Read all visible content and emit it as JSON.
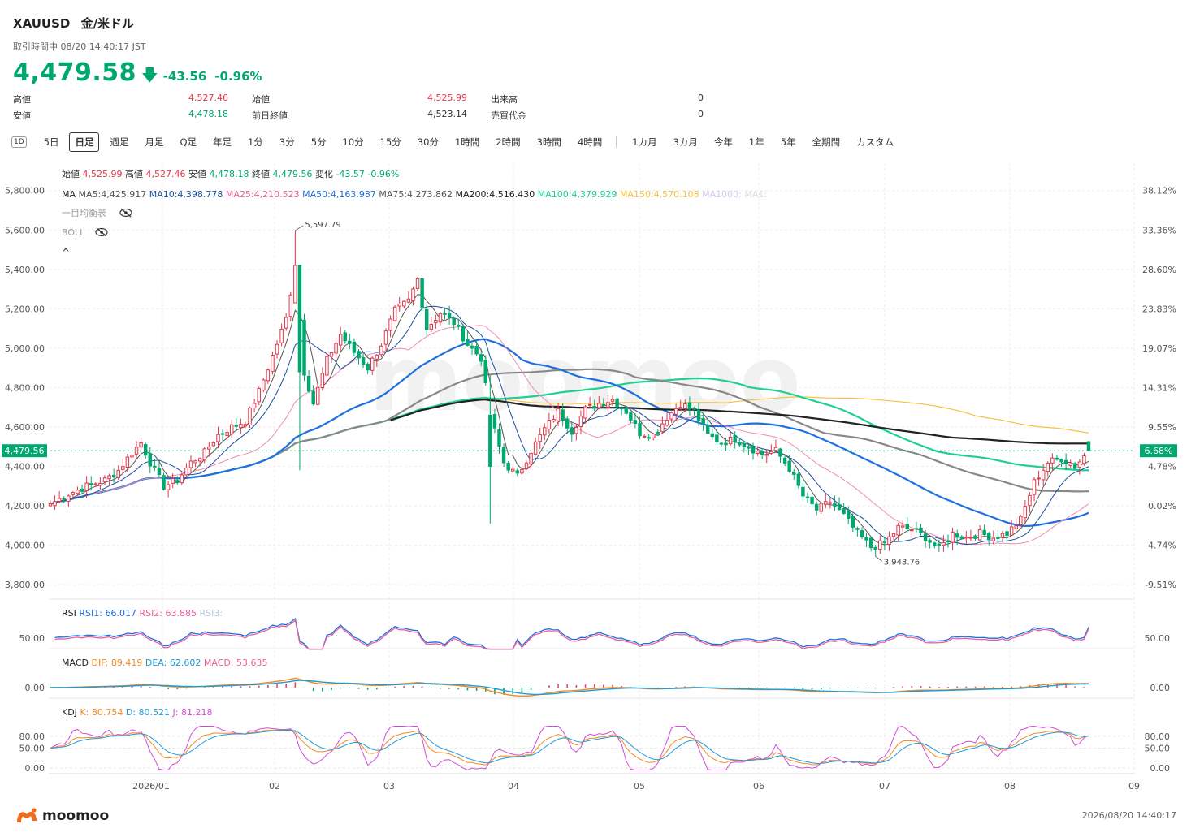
{
  "header": {
    "symbol": "XAUUSD",
    "name": "金/米ドル",
    "status": "取引時間中 08/20 14:40:17 JST",
    "price": "4,479.58",
    "change": "-43.56",
    "change_pct": "-0.96%"
  },
  "stats": {
    "high_label": "高値",
    "high": "4,527.46",
    "low_label": "安値",
    "low": "4,478.18",
    "open_label": "始値",
    "open": "4,525.99",
    "prev_close_label": "前日終値",
    "prev_close": "4,523.14",
    "volume_label": "出来高",
    "volume": "0",
    "turnover_label": "売買代金",
    "turnover": "0"
  },
  "toolbar": {
    "icon_label": "1D",
    "periods": [
      "5日",
      "日足",
      "週足",
      "月足",
      "Q足",
      "年足",
      "1分",
      "3分",
      "5分",
      "10分",
      "15分",
      "30分",
      "1時間",
      "2時間",
      "3時間",
      "4時間"
    ],
    "ranges": [
      "1カ月",
      "3カ月",
      "今年",
      "1年",
      "5年",
      "全期間",
      "カスタム"
    ],
    "active": "日足"
  },
  "legend": {
    "ohlc": [
      {
        "label": "始値",
        "value": "4,525.99",
        "color": "#e0364a"
      },
      {
        "label": "高値",
        "value": "4,527.46",
        "color": "#e0364a"
      },
      {
        "label": "安値",
        "value": "4,478.18",
        "color": "#00a870"
      },
      {
        "label": "終値",
        "value": "4,479.56",
        "color": "#00a870"
      },
      {
        "label": "変化",
        "value": "-43.57",
        "color": "#00a870"
      },
      {
        "label": "",
        "value": "-0.96%",
        "color": "#00a870"
      }
    ],
    "ma_title": "MA",
    "ma": [
      {
        "label": "MA5:",
        "value": "4,425.917",
        "color": "#666666"
      },
      {
        "label": "MA10:",
        "value": "4,398.778",
        "color": "#1a4fa0"
      },
      {
        "label": "MA25:",
        "value": "4,210.523",
        "color": "#e8609a"
      },
      {
        "label": "MA50:",
        "value": "4,163.987",
        "color": "#1e6fe0"
      },
      {
        "label": "MA75:",
        "value": "4,273.862",
        "color": "#666666"
      },
      {
        "label": "MA200:",
        "value": "4,516.430",
        "color": "#222222"
      },
      {
        "label": "MA100:",
        "value": "4,379.929",
        "color": "#1fd091"
      },
      {
        "label": "MA150:",
        "value": "4,570.108",
        "color": "#f5c343"
      },
      {
        "label": "MA1000:",
        "value": "",
        "color": "#d9c6ea"
      },
      {
        "label": "MA1:",
        "value": "",
        "color": "#dcdcdc"
      }
    ],
    "ichimoku": "一目均衡表",
    "boll": "BOLL",
    "collapse": "^"
  },
  "rsi_legend": [
    {
      "label": "RSI",
      "value": "",
      "color": "#222222"
    },
    {
      "label": "RSI1:",
      "value": "66.017",
      "color": "#1e6fe0"
    },
    {
      "label": "RSI2:",
      "value": "63.885",
      "color": "#e8609a"
    },
    {
      "label": "RSI3:",
      "value": "",
      "color": "#b9c7e8"
    }
  ],
  "macd_legend": [
    {
      "label": "MACD",
      "value": "",
      "color": "#222222"
    },
    {
      "label": "DIF:",
      "value": "89.419",
      "color": "#f08a24"
    },
    {
      "label": "DEA:",
      "value": "62.602",
      "color": "#1e9ad6"
    },
    {
      "label": "MACD:",
      "value": "53.635",
      "color": "#e8609a"
    }
  ],
  "kdj_legend": [
    {
      "label": "KDJ",
      "value": "",
      "color": "#222222"
    },
    {
      "label": "K:",
      "value": "80.754",
      "color": "#f08a24"
    },
    {
      "label": "D:",
      "value": "80.521",
      "color": "#1e9ad6"
    },
    {
      "label": "J:",
      "value": "81.218",
      "color": "#d24ad8"
    }
  ],
  "chart_data": {
    "type": "candlestick",
    "ylim": [
      3780,
      5840
    ],
    "y_ticks": [
      "5,800.00",
      "5,600.00",
      "5,400.00",
      "5,200.00",
      "5,000.00",
      "4,800.00",
      "4,600.00",
      "4,400.00",
      "4,200.00",
      "4,000.00",
      "3,800.00"
    ],
    "y_tick_values": [
      5800,
      5600,
      5400,
      5200,
      5000,
      4800,
      4600,
      4400,
      4200,
      4000,
      3800
    ],
    "pct_ticks": [
      "38.12%",
      "33.36%",
      "28.60%",
      "23.83%",
      "19.07%",
      "14.31%",
      "9.55%",
      "4.78%",
      "0.02%",
      "-4.74%",
      "-9.51%"
    ],
    "x_labels": [
      "2026/01",
      "02",
      "03",
      "04",
      "05",
      "06",
      "07",
      "08",
      "09"
    ],
    "last_price_label": "4,479.56",
    "last_pct_label": "6.68%",
    "high_marker": "5,597.79",
    "low_marker": "3,943.76",
    "close_anchors": [
      [
        0,
        4210
      ],
      [
        4,
        4260
      ],
      [
        8,
        4300
      ],
      [
        12,
        4330
      ],
      [
        15,
        4380
      ],
      [
        18,
        4470
      ],
      [
        20,
        4520
      ],
      [
        22,
        4420
      ],
      [
        25,
        4300
      ],
      [
        28,
        4330
      ],
      [
        31,
        4420
      ],
      [
        34,
        4470
      ],
      [
        37,
        4560
      ],
      [
        40,
        4600
      ],
      [
        43,
        4630
      ],
      [
        46,
        4780
      ],
      [
        49,
        4960
      ],
      [
        52,
        5150
      ],
      [
        54,
        5420
      ],
      [
        56,
        4880
      ],
      [
        58,
        4720
      ],
      [
        61,
        4940
      ],
      [
        64,
        5070
      ],
      [
        67,
        4980
      ],
      [
        70,
        4900
      ],
      [
        73,
        5020
      ],
      [
        76,
        5190
      ],
      [
        79,
        5240
      ],
      [
        81,
        5350
      ],
      [
        83,
        5100
      ],
      [
        86,
        5180
      ],
      [
        89,
        5130
      ],
      [
        92,
        5020
      ],
      [
        95,
        4950
      ],
      [
        97,
        4660
      ],
      [
        100,
        4420
      ],
      [
        103,
        4350
      ],
      [
        106,
        4480
      ],
      [
        109,
        4590
      ],
      [
        112,
        4680
      ],
      [
        115,
        4580
      ],
      [
        118,
        4690
      ],
      [
        121,
        4720
      ],
      [
        124,
        4740
      ],
      [
        127,
        4680
      ],
      [
        130,
        4570
      ],
      [
        133,
        4560
      ],
      [
        136,
        4650
      ],
      [
        139,
        4720
      ],
      [
        142,
        4680
      ],
      [
        145,
        4560
      ],
      [
        148,
        4520
      ],
      [
        151,
        4540
      ],
      [
        154,
        4500
      ],
      [
        157,
        4460
      ],
      [
        160,
        4480
      ],
      [
        163,
        4390
      ],
      [
        166,
        4250
      ],
      [
        169,
        4180
      ],
      [
        172,
        4220
      ],
      [
        175,
        4150
      ],
      [
        178,
        4060
      ],
      [
        181,
        3990
      ],
      [
        184,
        4010
      ],
      [
        187,
        4090
      ],
      [
        190,
        4080
      ],
      [
        193,
        4040
      ],
      [
        196,
        3980
      ],
      [
        199,
        4060
      ],
      [
        202,
        4040
      ],
      [
        205,
        4060
      ],
      [
        208,
        4040
      ],
      [
        211,
        4060
      ],
      [
        214,
        4130
      ],
      [
        217,
        4320
      ],
      [
        220,
        4420
      ],
      [
        223,
        4440
      ],
      [
        226,
        4400
      ],
      [
        229,
        4479.56
      ]
    ],
    "ma_end_values": {
      "MA5": 4425.917,
      "MA10": 4398.778,
      "MA25": 4210.523,
      "MA50": 4163.987,
      "MA75": 4273.862,
      "MA200": 4516.43,
      "MA100": 4379.929,
      "MA150": 4570.108
    },
    "rsi": {
      "tick": "50.00",
      "rsi1": 66.017,
      "rsi2": 63.885
    },
    "macd": {
      "tick": "0.00",
      "dif": 89.419,
      "dea": 62.602,
      "macd": 53.635
    },
    "kdj": {
      "ticks": [
        "80.00",
        "50.00",
        "0.00"
      ],
      "tick_values": [
        80,
        50,
        0
      ],
      "k": 80.754,
      "d": 80.521,
      "j": 81.218
    }
  },
  "footer": {
    "logo": "moomoo",
    "time": "2026/08/20 14:40:17"
  }
}
